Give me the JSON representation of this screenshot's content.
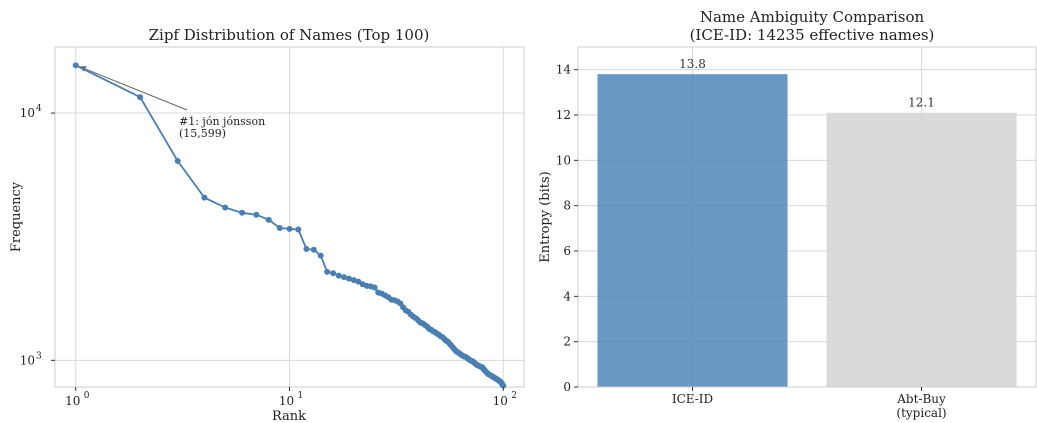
{
  "chart_data": [
    {
      "type": "line",
      "title": "Zipf Distribution of Names (Top 100)",
      "xlabel": "Rank",
      "ylabel": "Frequency",
      "xscale": "log",
      "yscale": "log",
      "xlim": [
        0.8,
        125
      ],
      "ylim": [
        780,
        18500
      ],
      "grid": true,
      "color": "#4a7fb1",
      "x_ticks": [
        {
          "base": "10",
          "exp": "0",
          "value": 1
        },
        {
          "base": "10",
          "exp": "1",
          "value": 10
        },
        {
          "base": "10",
          "exp": "2",
          "value": 100
        }
      ],
      "y_ticks": [
        {
          "base": "10",
          "exp": "3",
          "value": 1000
        },
        {
          "base": "10",
          "exp": "4",
          "value": 10000
        }
      ],
      "x": [
        1,
        2,
        3,
        4,
        5,
        6,
        7,
        8,
        9,
        10,
        11,
        12,
        13,
        14,
        15,
        16,
        17,
        18,
        19,
        20,
        21,
        22,
        23,
        24,
        25,
        26,
        27,
        28,
        29,
        30,
        31,
        32,
        33,
        34,
        35,
        36,
        37,
        38,
        39,
        40,
        41,
        42,
        43,
        44,
        45,
        46,
        47,
        48,
        49,
        50,
        51,
        52,
        53,
        54,
        55,
        56,
        57,
        58,
        59,
        60,
        61,
        62,
        63,
        64,
        65,
        66,
        67,
        68,
        69,
        70,
        71,
        72,
        73,
        74,
        75,
        76,
        77,
        78,
        79,
        80,
        81,
        82,
        83,
        84,
        85,
        86,
        87,
        88,
        89,
        90,
        91,
        92,
        93,
        94,
        95,
        96,
        97,
        98,
        99,
        100
      ],
      "y": [
        15599,
        11600,
        6400,
        4550,
        4150,
        3950,
        3880,
        3700,
        3430,
        3400,
        3380,
        2820,
        2800,
        2650,
        2280,
        2250,
        2200,
        2170,
        2140,
        2110,
        2080,
        2030,
        2000,
        1990,
        1970,
        1880,
        1860,
        1830,
        1800,
        1760,
        1750,
        1730,
        1700,
        1640,
        1590,
        1570,
        1530,
        1500,
        1480,
        1450,
        1420,
        1410,
        1390,
        1370,
        1340,
        1330,
        1310,
        1300,
        1280,
        1270,
        1250,
        1240,
        1220,
        1200,
        1190,
        1170,
        1150,
        1130,
        1110,
        1090,
        1080,
        1070,
        1060,
        1050,
        1040,
        1035,
        1030,
        1020,
        1010,
        1000,
        995,
        990,
        980,
        970,
        960,
        955,
        950,
        945,
        940,
        935,
        920,
        910,
        900,
        890,
        880,
        875,
        870,
        865,
        860,
        855,
        850,
        845,
        840,
        835,
        830,
        825,
        820,
        810,
        800,
        790
      ],
      "annotation": {
        "line1": "#1: jón jónsson",
        "line2": "(15,599)",
        "x": 1,
        "y": 15599
      }
    },
    {
      "type": "bar",
      "title_line1": "Name Ambiguity Comparison",
      "title_line2": "(ICE-ID: 14235 effective names)",
      "xlabel": "",
      "ylabel": "Entropy (bits)",
      "ylim": [
        0,
        15
      ],
      "grid": true,
      "y_ticks": [
        "0",
        "2",
        "4",
        "6",
        "8",
        "10",
        "12",
        "14"
      ],
      "categories": [
        {
          "line1": "ICE-ID",
          "line2": ""
        },
        {
          "line1": "Abt-Buy",
          "line2": "(typical)"
        }
      ],
      "values": [
        13.8,
        12.1
      ],
      "value_labels": [
        "13.8",
        "12.1"
      ],
      "colors": [
        "#4e86b8",
        "#d3d3d3"
      ]
    }
  ]
}
